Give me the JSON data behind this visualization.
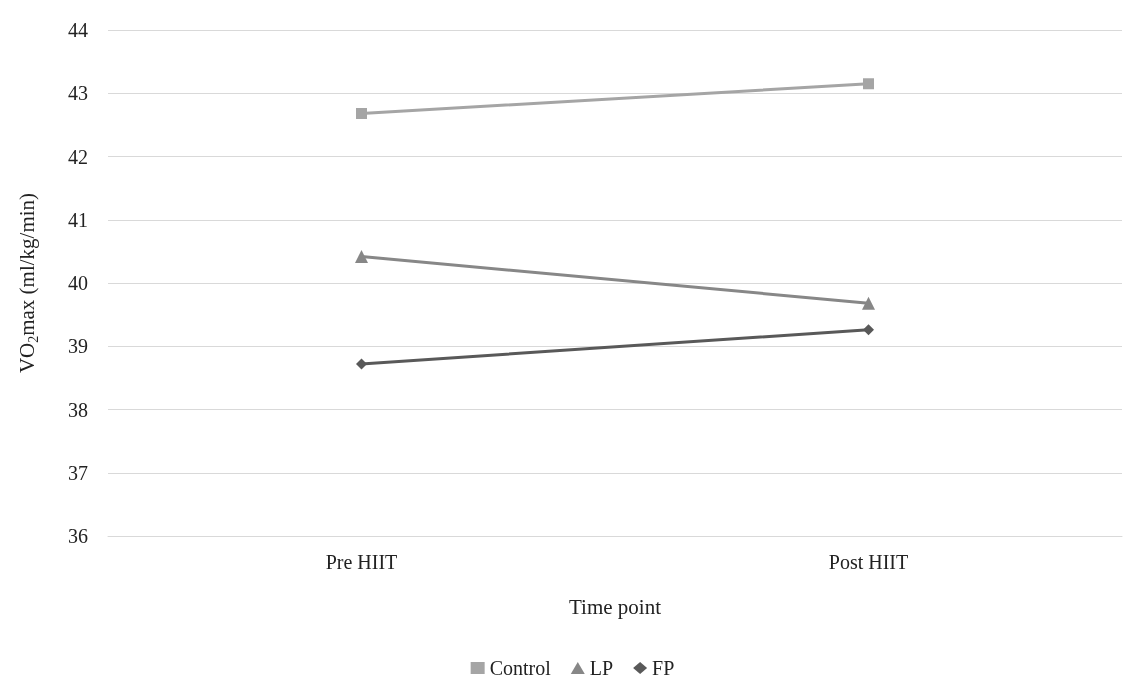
{
  "chart_data": {
    "type": "line",
    "xlabel": "Time point",
    "ylabel": "VO$_{2}$max (ml/kg/min)",
    "categories": [
      "Pre HIIT",
      "Post HIIT"
    ],
    "series": [
      {
        "name": "Control",
        "color": "#a5a5a5",
        "marker": "square",
        "values": [
          42.68,
          43.15
        ]
      },
      {
        "name": "LP",
        "color": "#878787",
        "marker": "triangle",
        "values": [
          40.42,
          39.68
        ]
      },
      {
        "name": "FP",
        "color": "#595959",
        "marker": "diamond",
        "values": [
          38.72,
          39.26
        ]
      }
    ],
    "ylim": [
      36,
      44
    ],
    "yticks": [
      36,
      37,
      38,
      39,
      40,
      41,
      42,
      43,
      44
    ],
    "grid": "y",
    "legend": "bottom",
    "line_style": "solid"
  }
}
